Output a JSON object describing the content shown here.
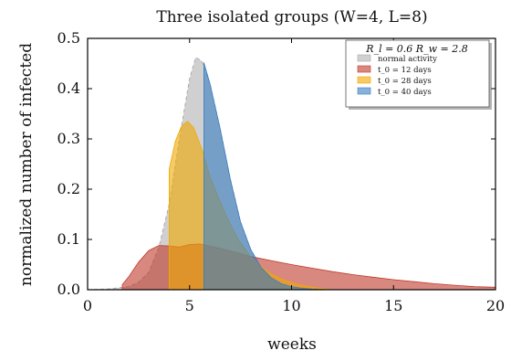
{
  "chart_data": {
    "type": "area",
    "title": "Three isolated groups (W=4, L=8)",
    "xlabel": "weeks",
    "ylabel": "normalized number of infected",
    "xlim": [
      0,
      20
    ],
    "ylim": [
      0,
      0.5
    ],
    "xticks": [
      0,
      5,
      10,
      15,
      20
    ],
    "yticks": [
      0.0,
      0.1,
      0.2,
      0.3,
      0.4,
      0.5
    ],
    "x_tick_labels": [
      "0",
      "5",
      "10",
      "15",
      "20"
    ],
    "y_tick_labels": [
      "0.0",
      "0.1",
      "0.2",
      "0.3",
      "0.4",
      "0.5"
    ],
    "legend_header": "R_l = 0.6   R_w = 2.8",
    "legend_position": "top-right",
    "grid": false,
    "series": [
      {
        "name": "normal activity",
        "color": "#c8c8c8",
        "dashed_outline": true,
        "x": [
          0,
          1,
          2,
          2.5,
          3,
          3.5,
          4,
          4.5,
          5,
          5.3,
          5.6,
          6,
          6.5,
          7,
          7.5,
          8,
          8.5,
          9,
          9.5,
          10,
          11,
          12,
          20
        ],
        "y": [
          0,
          0.0015,
          0.006,
          0.015,
          0.035,
          0.085,
          0.17,
          0.3,
          0.42,
          0.462,
          0.455,
          0.41,
          0.32,
          0.22,
          0.135,
          0.08,
          0.045,
          0.024,
          0.012,
          0.006,
          0.002,
          0,
          0
        ]
      },
      {
        "name": "t_0 = 12 days",
        "color": "#c0392b",
        "x": [
          1.7,
          2,
          2.5,
          3,
          3.5,
          4,
          4.5,
          5,
          5.5,
          6,
          6.5,
          7,
          7.5,
          8,
          9,
          10,
          11,
          12,
          13,
          14,
          15,
          16,
          17,
          18,
          19,
          20
        ],
        "y": [
          0.01,
          0.025,
          0.055,
          0.078,
          0.088,
          0.087,
          0.085,
          0.09,
          0.091,
          0.087,
          0.082,
          0.077,
          0.072,
          0.066,
          0.058,
          0.05,
          0.043,
          0.036,
          0.03,
          0.025,
          0.02,
          0.016,
          0.012,
          0.009,
          0.006,
          0.005
        ]
      },
      {
        "name": "t_0 = 28 days",
        "color": "#f0a800",
        "x": [
          4,
          4.3,
          4.6,
          4.9,
          5.2,
          5.6,
          6,
          6.5,
          7,
          7.5,
          8,
          8.5,
          9,
          9.5,
          10,
          10.5,
          11,
          12
        ],
        "y": [
          0.24,
          0.295,
          0.325,
          0.335,
          0.322,
          0.28,
          0.225,
          0.175,
          0.13,
          0.093,
          0.066,
          0.046,
          0.031,
          0.021,
          0.014,
          0.009,
          0.005,
          0
        ]
      },
      {
        "name": "t_0 = 40 days",
        "color": "#3a7fc1",
        "x": [
          5.7,
          6,
          6.5,
          7,
          7.5,
          8,
          8.5,
          9,
          9.5,
          10,
          10.5,
          11,
          12
        ],
        "y": [
          0.452,
          0.41,
          0.32,
          0.22,
          0.135,
          0.08,
          0.045,
          0.024,
          0.012,
          0.006,
          0.003,
          0.001,
          0
        ]
      }
    ]
  }
}
